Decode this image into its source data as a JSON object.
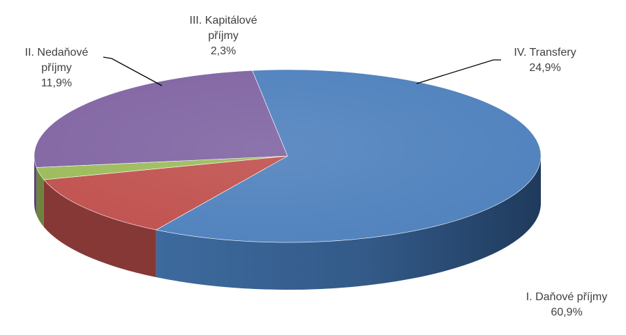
{
  "chart_data": {
    "type": "pie",
    "title": "",
    "slices": [
      {
        "name": "I. Daňové příjmy",
        "label_lines": [
          "I. Daňové příjmy",
          "60,9%"
        ],
        "value": 60.9,
        "color": "#4f81bd"
      },
      {
        "name": "II. Nedaňové příjmy",
        "label_lines": [
          "II. Nedaňové",
          "příjmy",
          "11,9%"
        ],
        "value": 11.9,
        "color": "#c0504d"
      },
      {
        "name": "III. Kapitálové příjmy",
        "label_lines": [
          "III. Kapitálové",
          "příjmy",
          "2,3%"
        ],
        "value": 2.3,
        "color": "#9bbb59"
      },
      {
        "name": "IV. Transfery",
        "label_lines": [
          "IV. Transfery",
          "24,9%"
        ],
        "value": 24.9,
        "color": "#8064a2"
      }
    ],
    "legend": "none",
    "style": "3d-pie"
  }
}
